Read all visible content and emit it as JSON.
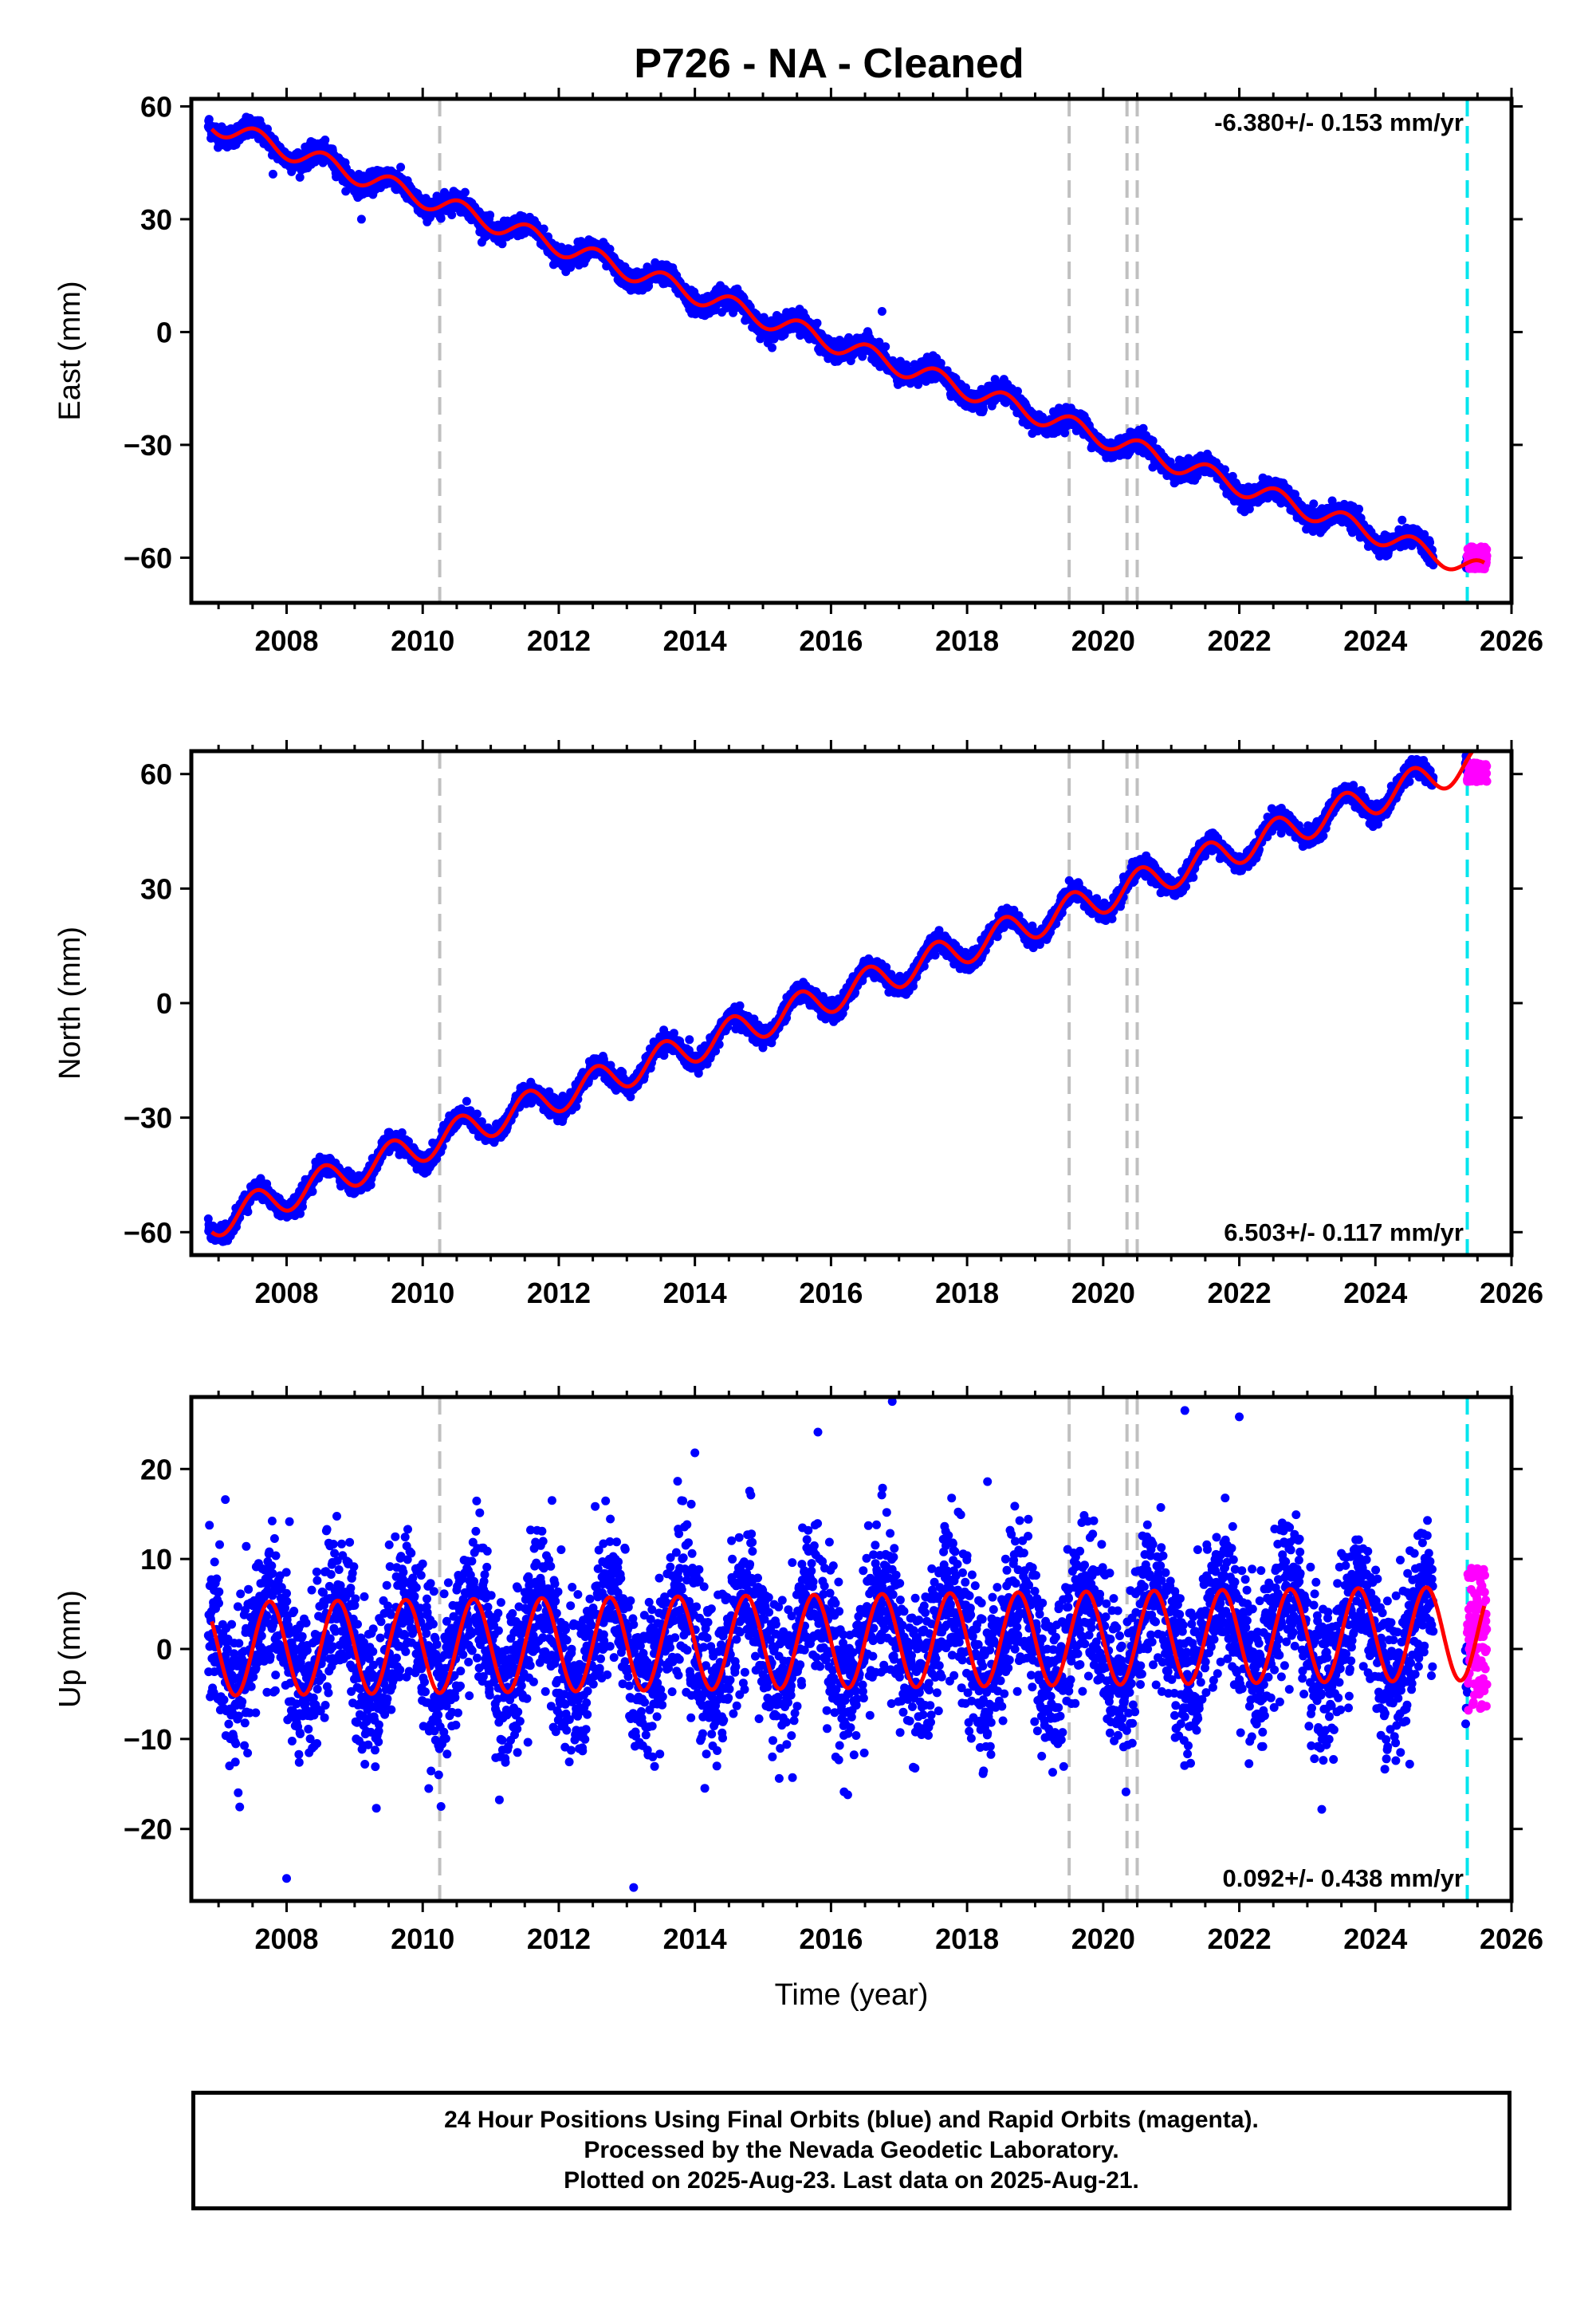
{
  "title": "P726  - NA - Cleaned",
  "colors": {
    "final": "#0000ff",
    "rapid": "#ff00ff",
    "model": "#ff0000",
    "equipment_change": "#c0c0c0",
    "rapid_start": "#00e5ee"
  },
  "chart_data": [
    {
      "type": "scatter",
      "component": "East",
      "ylabel": "East (mm)",
      "xlabel": "",
      "xlim": [
        2006.6,
        2026.0
      ],
      "ylim": [
        -72,
        62
      ],
      "x_ticks": [
        2008,
        2010,
        2012,
        2014,
        2016,
        2018,
        2020,
        2022,
        2024,
        2026
      ],
      "y_ticks": [
        60,
        30,
        0,
        -30,
        -60
      ],
      "y_tick_labels": [
        "60",
        "30",
        "0",
        "−30",
        "−60"
      ],
      "rate_label": "-6.380+/- 0.153 mm/yr",
      "rate_label_position": "top-right",
      "trend": {
        "t0": 2006.9,
        "y0": 55.5,
        "rate_mm_per_yr": -6.38,
        "annual_amplitude": 2.6,
        "phase_peak_year_fraction": 0.55,
        "scatter_sd": 1.3
      },
      "equipment_change_lines": [
        2010.25,
        2019.5,
        2020.35,
        2020.5
      ],
      "rapid_start": 2025.35,
      "final_range": [
        2006.85,
        2025.35
      ],
      "rapid_range": [
        2025.35,
        2025.64
      ],
      "rapid_values_range": [
        -63,
        -57
      ],
      "outliers": [
        [
          2016.75,
          5.5
        ],
        [
          2007.8,
          42
        ],
        [
          2009.1,
          30
        ]
      ]
    },
    {
      "type": "scatter",
      "component": "North",
      "ylabel": "North (mm)",
      "xlabel": "",
      "xlim": [
        2006.6,
        2026.0
      ],
      "ylim": [
        -66,
        66
      ],
      "x_ticks": [
        2008,
        2010,
        2012,
        2014,
        2016,
        2018,
        2020,
        2022,
        2024,
        2026
      ],
      "y_ticks": [
        60,
        30,
        0,
        -30,
        -60
      ],
      "y_tick_labels": [
        "60",
        "30",
        "0",
        "−30",
        "−60"
      ],
      "rate_label": "6.503+/- 0.117 mm/yr",
      "rate_label_position": "bottom-right",
      "trend": {
        "t0": 2006.9,
        "y0": -57.5,
        "rate_mm_per_yr": 6.503,
        "annual_amplitude": 4.2,
        "phase_peak_year_fraction": 0.55,
        "scatter_sd": 1.2
      },
      "equipment_change_lines": [
        2010.25,
        2019.5,
        2020.35,
        2020.5
      ],
      "rapid_start": 2025.35,
      "final_range": [
        2006.85,
        2025.35
      ],
      "rapid_range": [
        2025.35,
        2025.64
      ],
      "rapid_values_range": [
        58,
        63
      ],
      "outliers": []
    },
    {
      "type": "scatter",
      "component": "Up",
      "ylabel": "Up (mm)",
      "xlabel": "Time (year)",
      "xlim": [
        2006.6,
        2026.0
      ],
      "ylim": [
        -28,
        28
      ],
      "x_ticks": [
        2008,
        2010,
        2012,
        2014,
        2016,
        2018,
        2020,
        2022,
        2024,
        2026
      ],
      "y_ticks": [
        20,
        10,
        0,
        -10,
        -20
      ],
      "y_tick_labels": [
        "20",
        "10",
        "0",
        "−10",
        "−20"
      ],
      "rate_label": "0.092+/- 0.438 mm/yr",
      "rate_label_position": "bottom-right",
      "trend": {
        "t0": 2006.9,
        "y0": 0,
        "rate_mm_per_yr": 0.092,
        "annual_amplitude": 5.2,
        "phase_peak_year_fraction": 0.75,
        "scatter_sd": 4.3
      },
      "equipment_change_lines": [
        2010.25,
        2019.5,
        2020.35,
        2020.5
      ],
      "rapid_start": 2025.35,
      "final_range": [
        2006.85,
        2025.35
      ],
      "rapid_range": [
        2025.35,
        2025.64
      ],
      "rapid_values_range": [
        -7,
        9
      ],
      "outliers": [
        [
          2016.9,
          27.5
        ],
        [
          2021.2,
          26.5
        ],
        [
          2022.0,
          25.8
        ],
        [
          2008.0,
          -25.5
        ],
        [
          2013.1,
          -26.5
        ],
        [
          2014.0,
          21.8
        ],
        [
          2007.1,
          16.6
        ],
        [
          2011.9,
          16.5
        ],
        [
          2018.3,
          18.6
        ]
      ]
    }
  ],
  "footer": {
    "line1": "24 Hour Positions Using Final Orbits (blue) and Rapid Orbits (magenta).",
    "line2": "Processed by the Nevada Geodetic Laboratory.",
    "line3": "Plotted on 2025-Aug-23. Last data on 2025-Aug-21."
  }
}
